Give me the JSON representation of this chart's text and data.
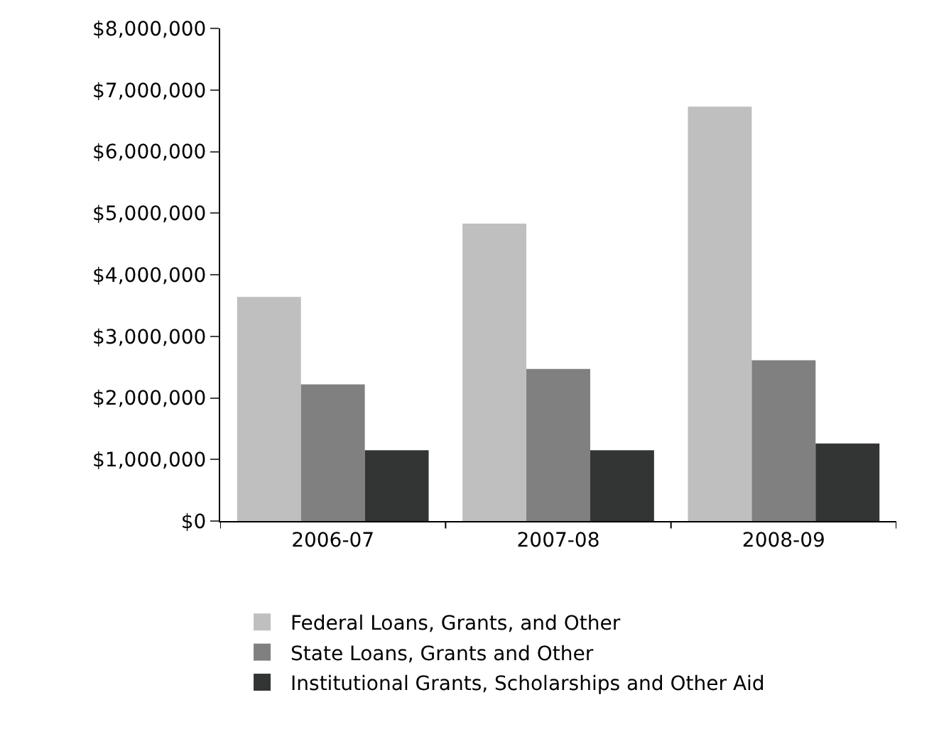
{
  "chart_data": {
    "type": "bar",
    "categories": [
      "2006-07",
      "2007-08",
      "2008-09"
    ],
    "series": [
      {
        "name": "Federal Loans, Grants, and Other",
        "color": "#bfbfbf",
        "values": [
          3640000,
          4830000,
          6730000
        ]
      },
      {
        "name": "State Loans, Grants and Other",
        "color": "#808080",
        "values": [
          2220000,
          2470000,
          2610000
        ]
      },
      {
        "name": "Institutional Grants, Scholarships and Other Aid",
        "color": "#333535",
        "values": [
          1150000,
          1150000,
          1260000
        ]
      }
    ],
    "ylim": [
      0,
      8000000
    ],
    "yticks": [
      {
        "value": 0,
        "label": "$0"
      },
      {
        "value": 1000000,
        "label": "$1,000,000"
      },
      {
        "value": 2000000,
        "label": "$2,000,000"
      },
      {
        "value": 3000000,
        "label": "$3,000,000"
      },
      {
        "value": 4000000,
        "label": "$4,000,000"
      },
      {
        "value": 5000000,
        "label": "$5,000,000"
      },
      {
        "value": 6000000,
        "label": "$6,000,000"
      },
      {
        "value": 7000000,
        "label": "$7,000,000"
      },
      {
        "value": 8000000,
        "label": "$8,000,000"
      }
    ],
    "grid": false,
    "legend": "bottom"
  }
}
